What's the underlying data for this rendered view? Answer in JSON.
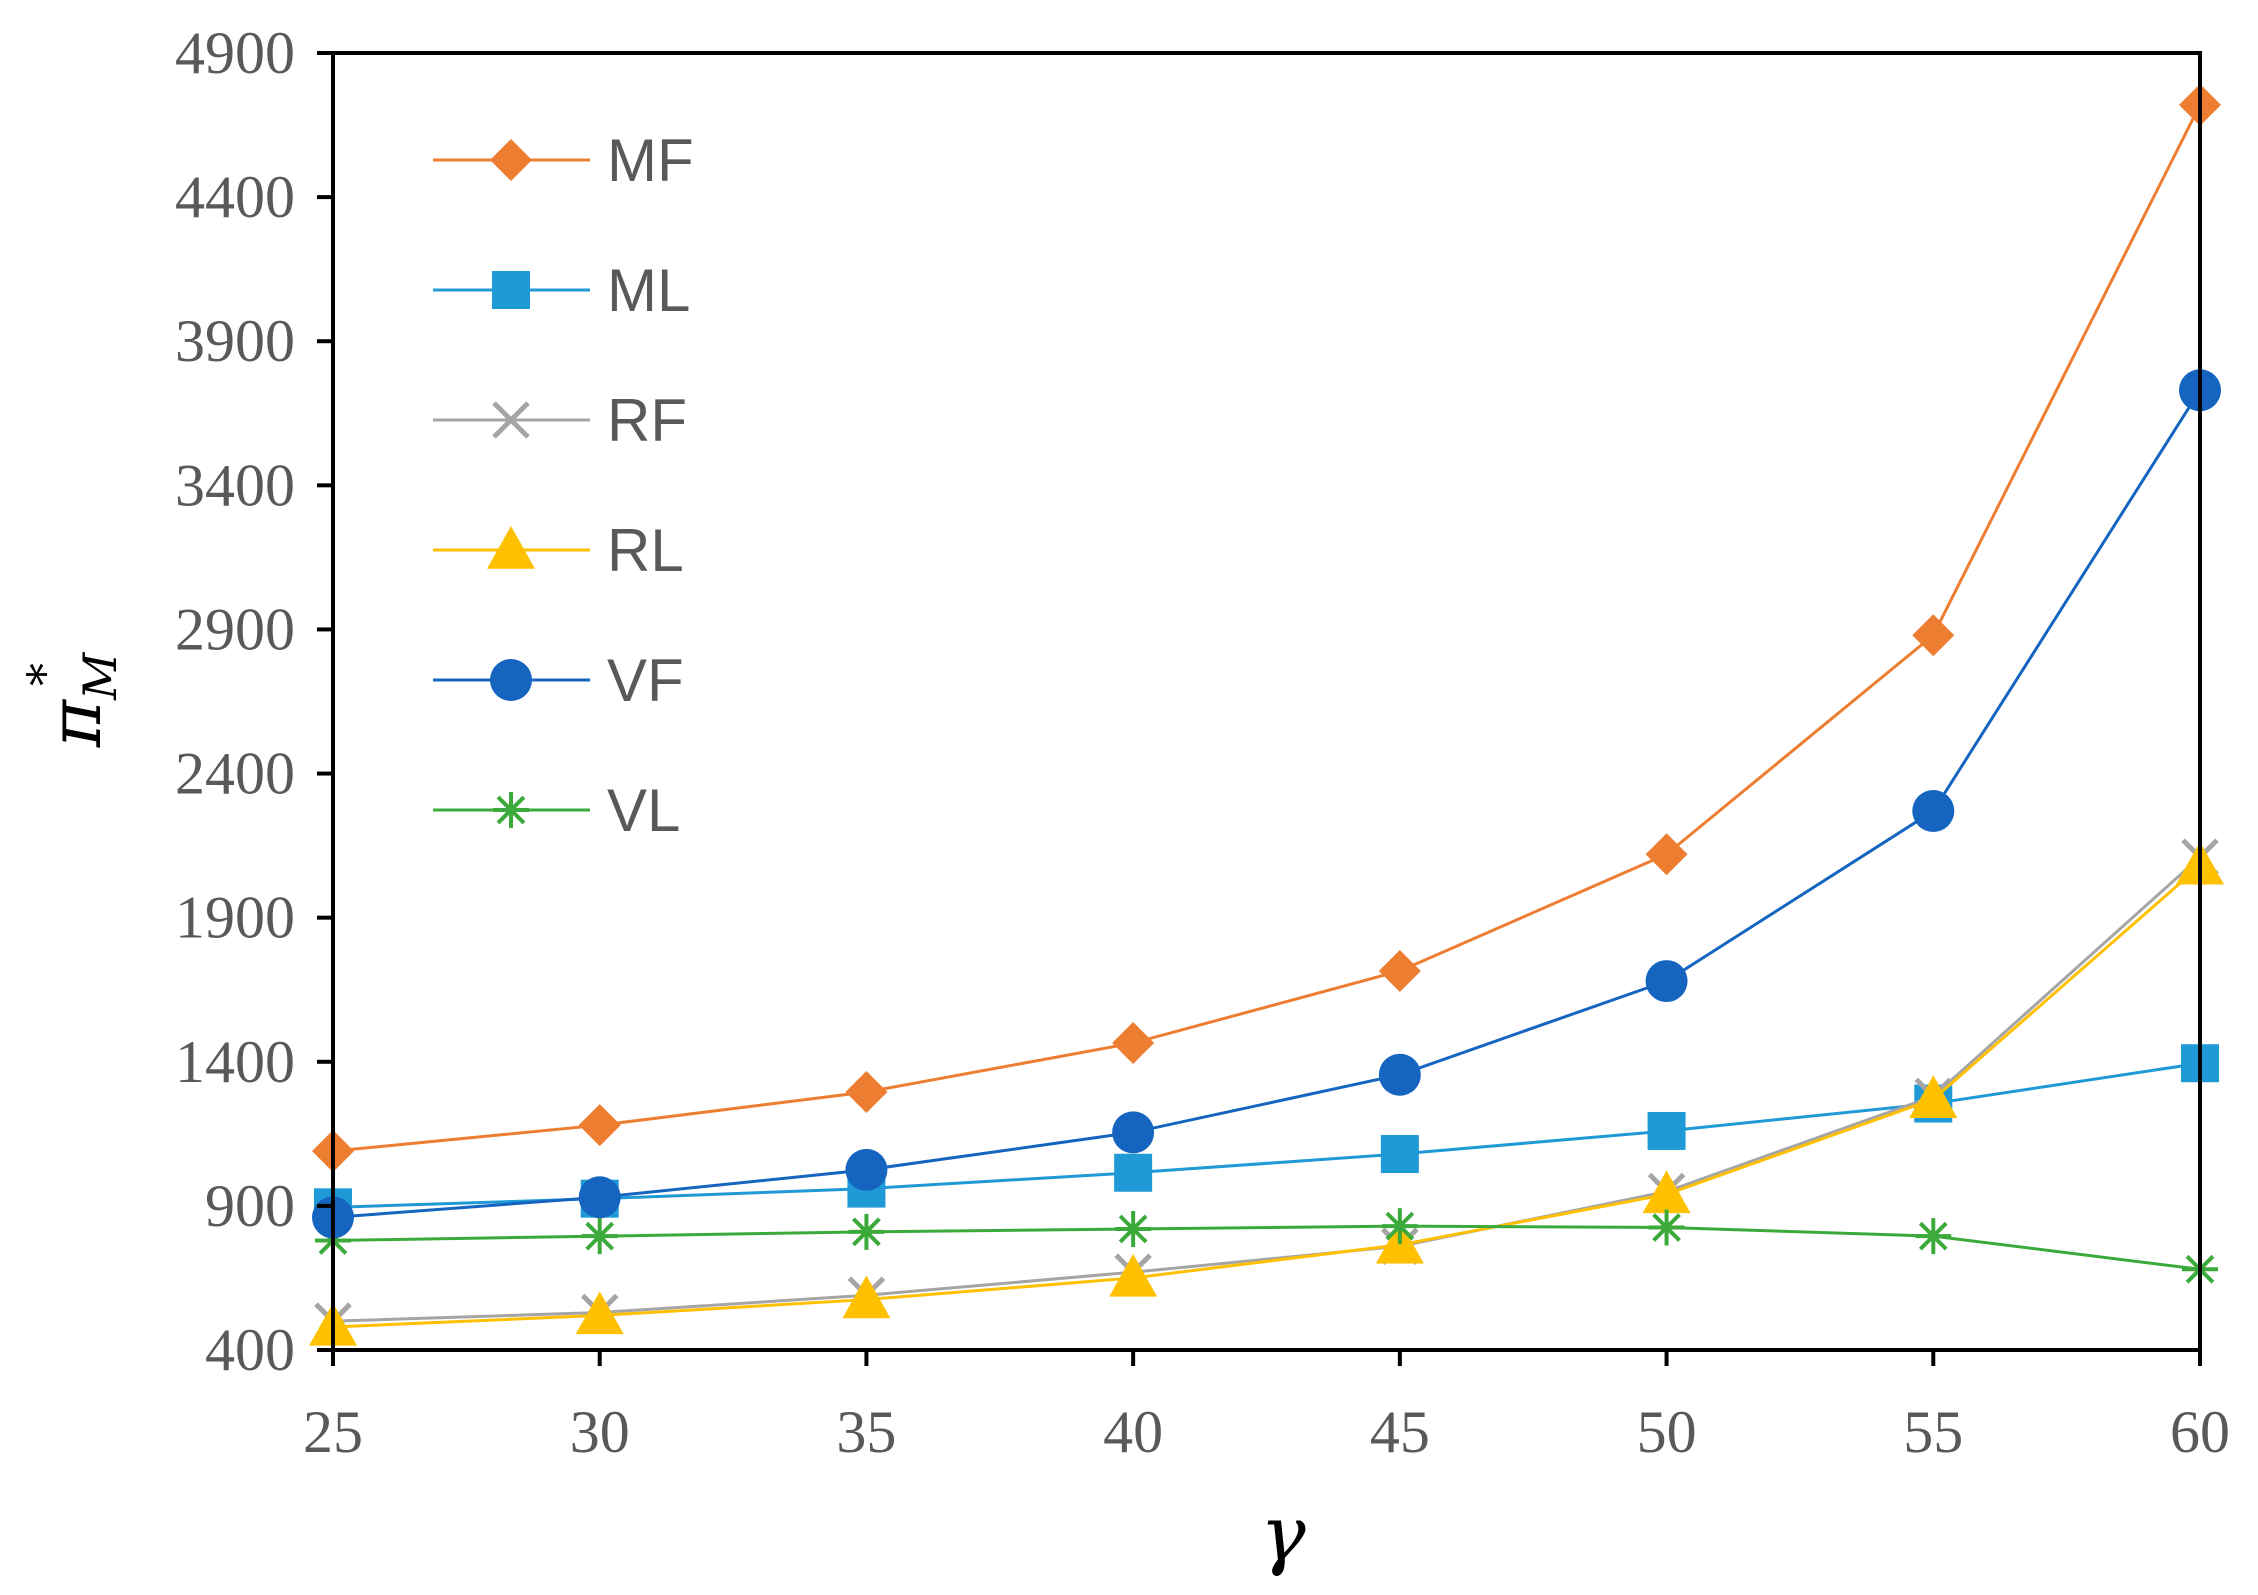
{
  "chart_data": {
    "type": "line",
    "title": "",
    "xlabel": "γ",
    "ylabel": "π",
    "ylabel_superscript": "*",
    "ylabel_subscript": "M",
    "x": [
      25,
      30,
      35,
      40,
      45,
      50,
      55,
      60
    ],
    "xlim": [
      25,
      60
    ],
    "ylim": [
      400,
      4900
    ],
    "yticks": [
      400,
      900,
      1400,
      1900,
      2400,
      2900,
      3400,
      3900,
      4400,
      4900
    ],
    "xticks": [
      25,
      30,
      35,
      40,
      45,
      50,
      55,
      60
    ],
    "grid": false,
    "legend_position": "top-left",
    "series": [
      {
        "name": "MF",
        "color": "#ED7D31",
        "marker": "diamond",
        "values": [
          1090,
          1180,
          1295,
          1465,
          1715,
          2120,
          2880,
          4720
        ]
      },
      {
        "name": "ML",
        "color": "#1F9AD6",
        "marker": "square",
        "values": [
          895,
          925,
          960,
          1015,
          1080,
          1160,
          1255,
          1395
        ]
      },
      {
        "name": "RF",
        "color": "#A5A5A5",
        "marker": "x",
        "values": [
          500,
          530,
          590,
          670,
          760,
          950,
          1280,
          2110
        ]
      },
      {
        "name": "RL",
        "color": "#FFC000",
        "marker": "triangle",
        "values": [
          480,
          520,
          575,
          650,
          765,
          940,
          1270,
          2080
        ]
      },
      {
        "name": "VF",
        "color": "#1565C0",
        "marker": "circle",
        "values": [
          860,
          930,
          1025,
          1155,
          1355,
          1680,
          2270,
          3730
        ]
      },
      {
        "name": "VL",
        "color": "#3BAA3B",
        "marker": "asterisk",
        "values": [
          780,
          795,
          810,
          820,
          830,
          825,
          795,
          680
        ]
      }
    ]
  }
}
